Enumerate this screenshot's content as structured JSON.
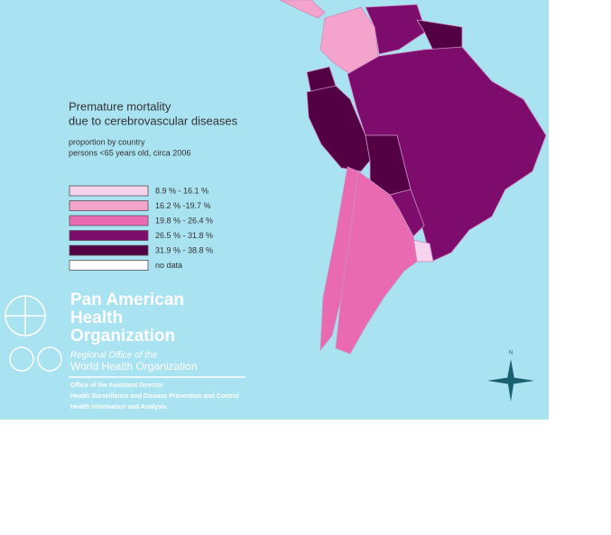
{
  "title": [
    "Premature mortality",
    "due to cerebrovascular diseases"
  ],
  "subtitle": [
    "proportion by country",
    "persons <65 years old, circa 2006"
  ],
  "legend": [
    {
      "label": "8.9 % - 16.1 %",
      "color": "#f6d3ec"
    },
    {
      "label": "16.2 % -19.7 %",
      "color": "#f3a3cc"
    },
    {
      "label": "19.8 % - 26.4 %",
      "color": "#e96ab0"
    },
    {
      "label": "26.5 % - 31.8 %",
      "color": "#7e0c6c"
    },
    {
      "label": "31.9 % - 38.8 %",
      "color": "#540045"
    },
    {
      "label": "no data",
      "color": "#ffffff"
    }
  ],
  "organization": {
    "name": [
      "Pan American",
      "Health",
      "Organization"
    ],
    "regional_office": "Regional Office of the",
    "who": "World Health Organization",
    "offices": [
      "Office of the Assistant Director",
      "Health Surveillance and Disease Prevention and Control",
      "Health Information and Analysis"
    ]
  },
  "compass": "N"
}
